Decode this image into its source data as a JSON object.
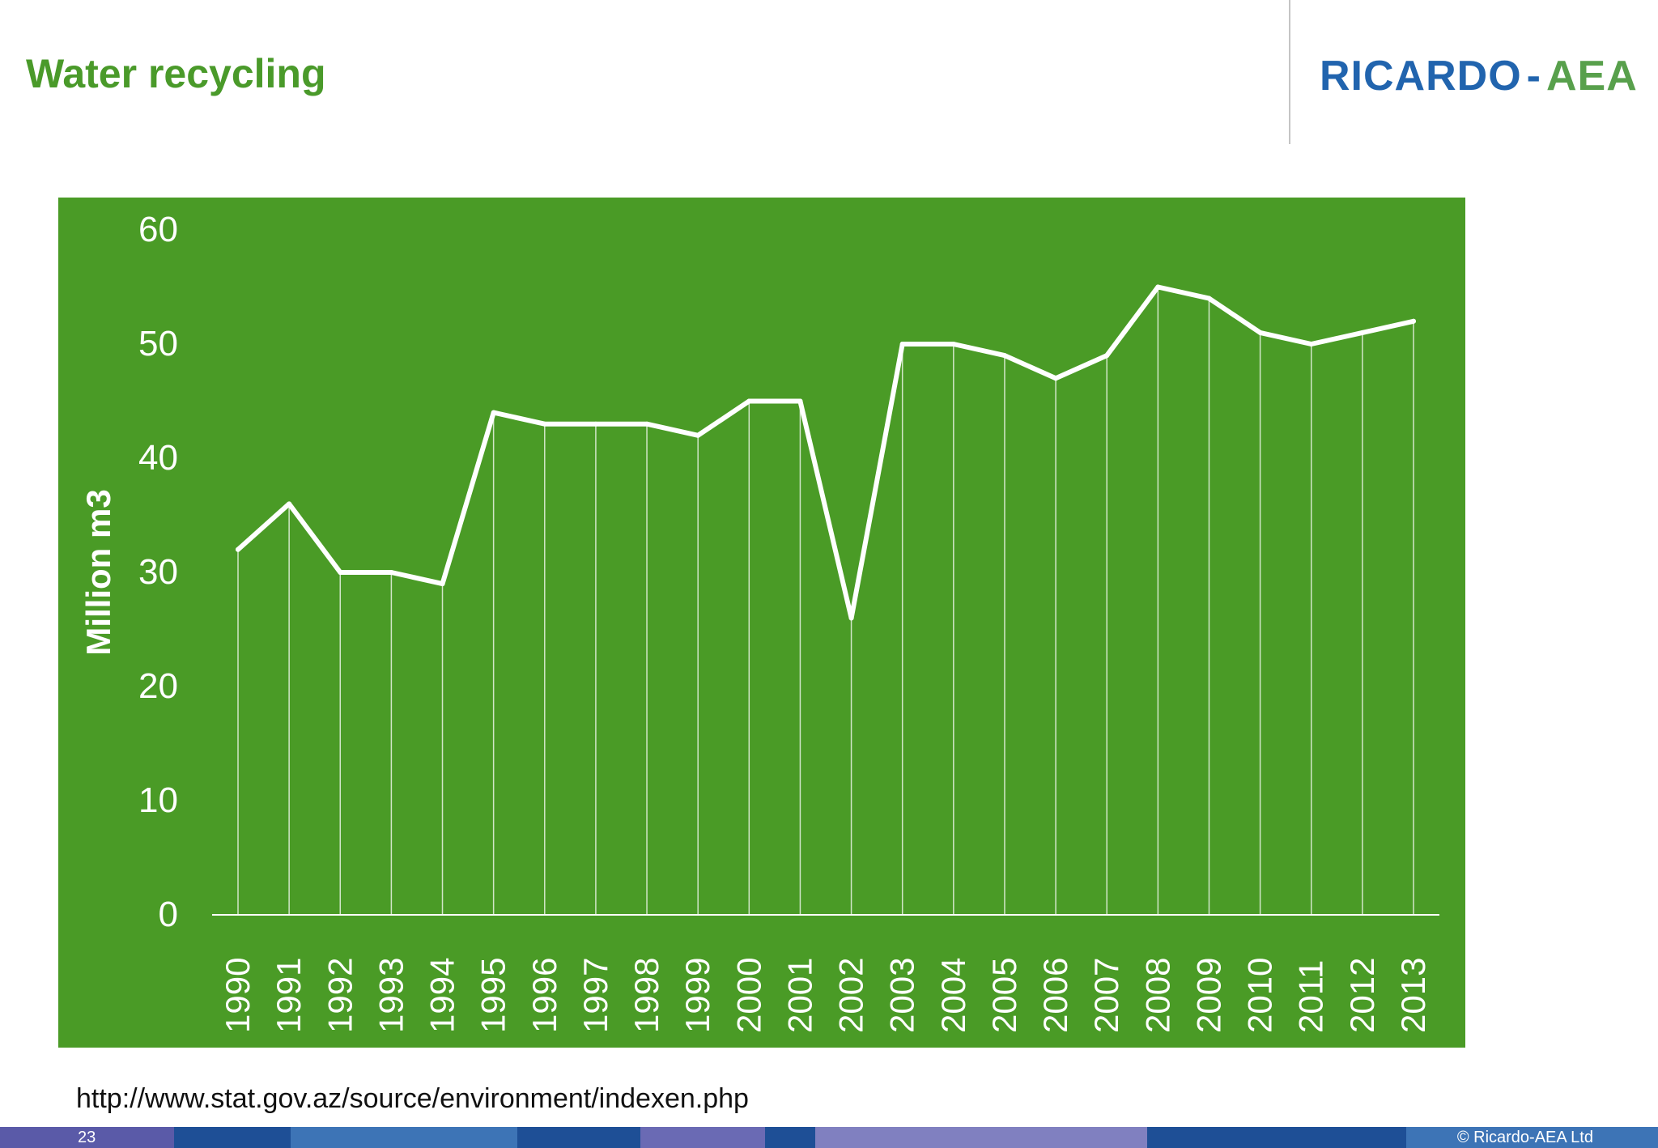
{
  "slide": {
    "title": "Water recycling",
    "logo_part_a": "RICARDO",
    "logo_separator": "-",
    "logo_part_b": "AEA",
    "source": "http://www.stat.gov.az/source/environment/indexen.php",
    "page_number": "23",
    "copyright": "© Ricardo-AEA Ltd"
  },
  "colors": {
    "title": "#4a9a2a",
    "panel": "#4a9b26",
    "line": "#ffffff",
    "footer_segments": [
      "#5a5aa8",
      "#1e4f96",
      "#3d74b6",
      "#1e4f96",
      "#6a6ab4",
      "#1e4f96",
      "#8080c0",
      "#1e4f96",
      "#3d74b6"
    ]
  },
  "chart_data": {
    "type": "line",
    "title": "",
    "xlabel": "",
    "ylabel": "Million m3",
    "ylim": [
      0,
      60
    ],
    "yticks": [
      0,
      10,
      20,
      30,
      40,
      50,
      60
    ],
    "grid": false,
    "drop_lines": true,
    "categories": [
      "1990",
      "1991",
      "1992",
      "1993",
      "1994",
      "1995",
      "1996",
      "1997",
      "1998",
      "1999",
      "2000",
      "2001",
      "2002",
      "2003",
      "2004",
      "2005",
      "2006",
      "2007",
      "2008",
      "2009",
      "2010",
      "2011",
      "2012",
      "2013"
    ],
    "series": [
      {
        "name": "Water recycling",
        "values": [
          32,
          36,
          30,
          30,
          29,
          44,
          43,
          43,
          43,
          42,
          45,
          45,
          26,
          50,
          50,
          49,
          47,
          49,
          55,
          54,
          51,
          50,
          51,
          52
        ]
      }
    ]
  }
}
